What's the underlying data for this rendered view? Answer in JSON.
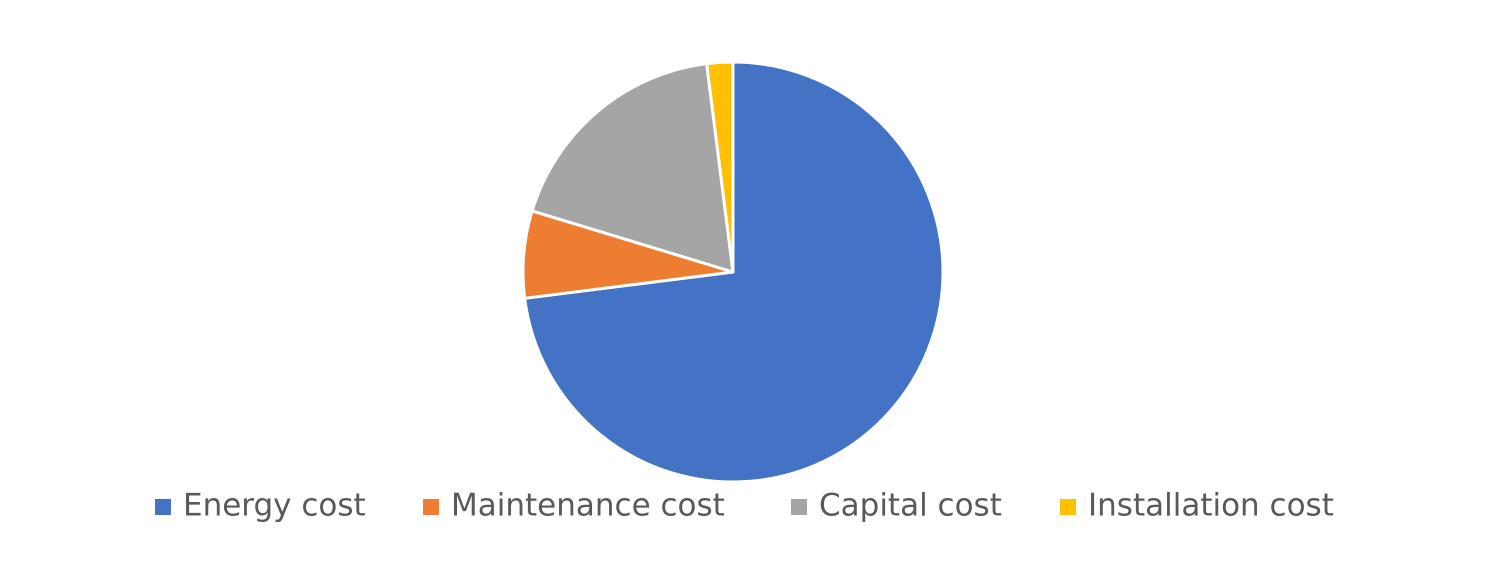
{
  "chart_data": {
    "type": "pie",
    "categories": [
      "Energy cost",
      "Maintenance cost",
      "Capital cost",
      "Installation cost"
    ],
    "values": [
      73,
      6.7,
      18.3,
      2
    ],
    "colors": [
      "#4472c4",
      "#ed7d31",
      "#a5a5a5",
      "#ffc000"
    ],
    "legend": "bottom"
  }
}
